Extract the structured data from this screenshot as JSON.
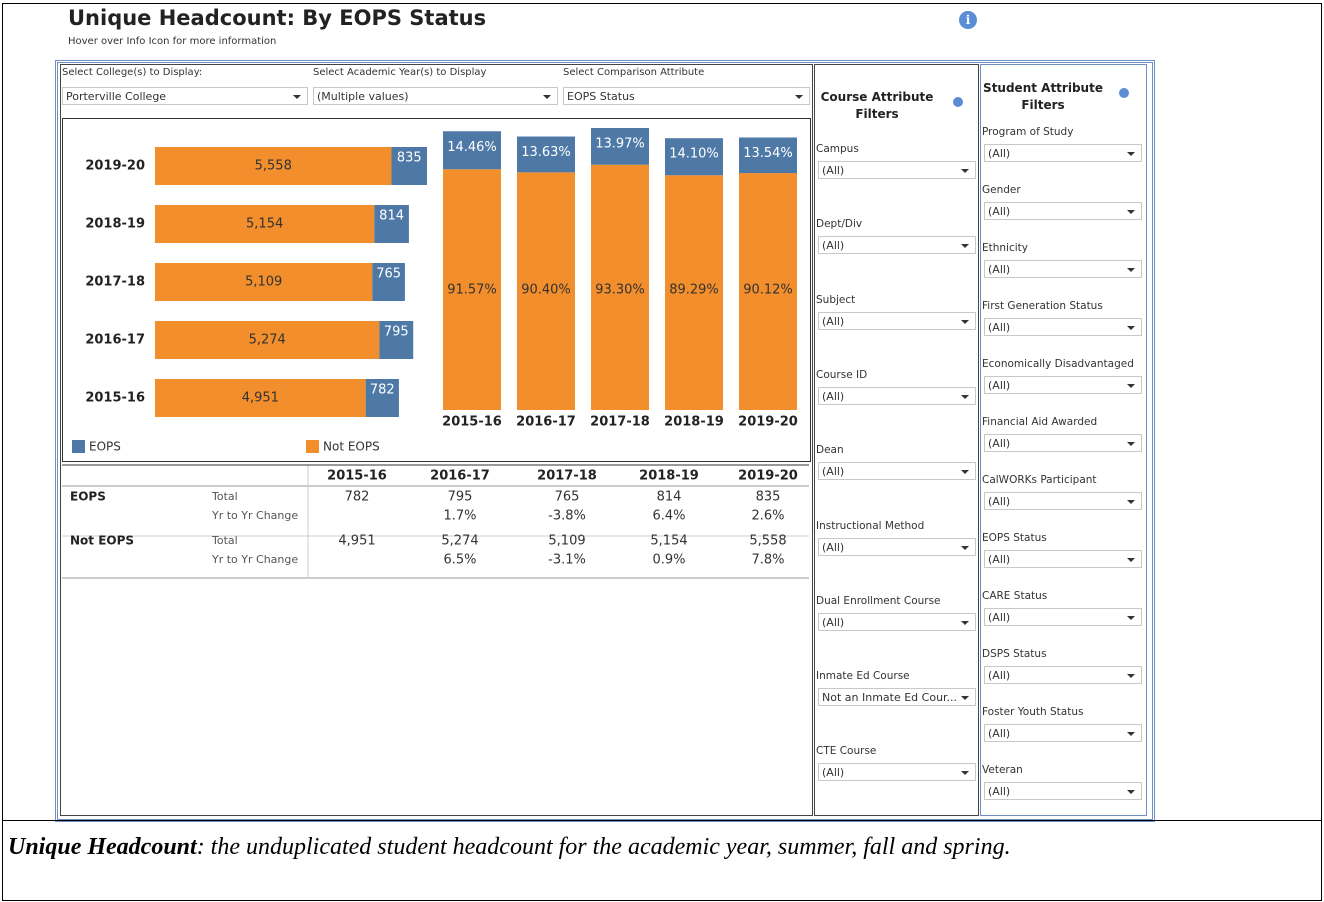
{
  "header": {
    "title": "Unique Headcount: By EOPS Status",
    "subtitle": "Hover over Info Icon for more information"
  },
  "selectors": [
    {
      "label": "Select College(s) to Display:",
      "value": "Porterville College"
    },
    {
      "label": "Select Academic Year(s) to Display",
      "value": "(Multiple values)"
    },
    {
      "label": "Select Comparison Attribute",
      "value": "EOPS Status"
    }
  ],
  "chart_data": [
    {
      "type": "bar",
      "orientation": "horizontal",
      "stacked": true,
      "legend": "bottom",
      "categories": [
        "2019-20",
        "2018-19",
        "2017-18",
        "2016-17",
        "2015-16"
      ],
      "series": [
        {
          "name": "EOPS",
          "color": "#4e79a7",
          "values": [
            835,
            814,
            765,
            795,
            782
          ],
          "value_labels": [
            "835",
            "814",
            "765",
            "795",
            "782"
          ]
        },
        {
          "name": "Not EOPS",
          "color": "#f28e2b",
          "values": [
            5558,
            5154,
            5109,
            5274,
            4951
          ],
          "value_labels": [
            "5,558",
            "5,154",
            "5,109",
            "5,274",
            "4,951"
          ]
        }
      ]
    },
    {
      "type": "bar",
      "orientation": "vertical",
      "stacked": true,
      "categories": [
        "2015-16",
        "2016-17",
        "2017-18",
        "2018-19",
        "2019-20"
      ],
      "series": [
        {
          "color": "#4e79a7",
          "values": [
            14.46,
            13.63,
            13.97,
            14.1,
            13.54
          ],
          "value_labels": [
            "14.46%",
            "13.63%",
            "13.97%",
            "14.10%",
            "13.54%"
          ]
        },
        {
          "color": "#f28e2b",
          "values": [
            91.57,
            90.4,
            93.3,
            89.29,
            90.12
          ],
          "value_labels": [
            "91.57%",
            "90.40%",
            "93.30%",
            "89.29%",
            "90.12%"
          ]
        }
      ]
    }
  ],
  "table": {
    "columns": [
      "2015-16",
      "2016-17",
      "2017-18",
      "2018-19",
      "2019-20"
    ],
    "rows": [
      {
        "group": "EOPS",
        "measure": "Total",
        "cells": [
          "782",
          "795",
          "765",
          "814",
          "835"
        ]
      },
      {
        "measure": "Yr to Yr Change",
        "cells": [
          null,
          "1.7%",
          "-3.8%",
          "6.4%",
          "2.6%"
        ]
      },
      {
        "group": "Not EOPS",
        "measure": "Total",
        "cells": [
          "4,951",
          "5,274",
          "5,109",
          "5,154",
          "5,558"
        ]
      },
      {
        "measure": "Yr to Yr Change",
        "cells": [
          null,
          "6.5%",
          "-3.1%",
          "0.9%",
          "7.8%"
        ]
      }
    ]
  },
  "course_filters": {
    "title": "Course Attribute Filters",
    "items": [
      {
        "label": "Campus",
        "value": "(All)"
      },
      {
        "label": "Dept/Div",
        "value": "(All)"
      },
      {
        "label": "Subject",
        "value": "(All)"
      },
      {
        "label": "Course ID",
        "value": "(All)"
      },
      {
        "label": "Dean",
        "value": "(All)"
      },
      {
        "label": "Instructional Method",
        "value": "(All)"
      },
      {
        "label": "Dual Enrollment Course",
        "value": "(All)"
      },
      {
        "label": "Inmate Ed Course",
        "value": "Not an Inmate Ed Cour..."
      },
      {
        "label": "CTE Course",
        "value": "(All)"
      }
    ]
  },
  "student_filters": {
    "title": "Student Attribute Filters",
    "items": [
      {
        "label": "Program of Study",
        "value": "(All)"
      },
      {
        "label": "Gender",
        "value": "(All)"
      },
      {
        "label": "Ethnicity",
        "value": "(All)"
      },
      {
        "label": "First Generation Status",
        "value": "(All)"
      },
      {
        "label": "Economically Disadvantaged",
        "value": "(All)"
      },
      {
        "label": "Financial Aid Awarded",
        "value": "(All)"
      },
      {
        "label": "CalWORKs Participant",
        "value": "(All)"
      },
      {
        "label": "EOPS Status",
        "value": "(All)"
      },
      {
        "label": "CARE Status",
        "value": "(All)"
      },
      {
        "label": "DSPS Status",
        "value": "(All)"
      },
      {
        "label": "Foster Youth Status",
        "value": "(All)"
      },
      {
        "label": "Veteran",
        "value": "(All)"
      }
    ]
  },
  "footer": {
    "term": "Unique Headcount",
    "definition": ": the unduplicated student headcount for the academic year, summer, fall and spring."
  }
}
